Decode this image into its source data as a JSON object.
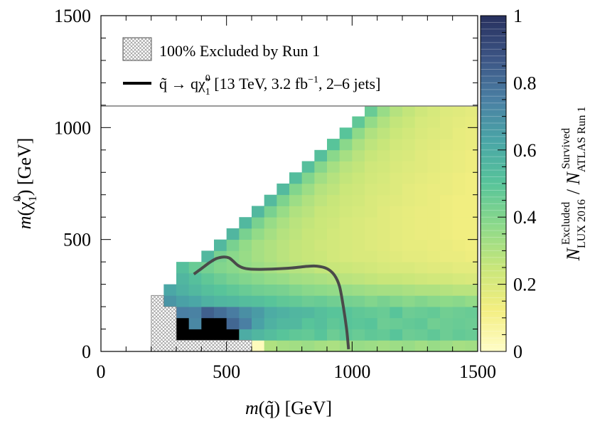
{
  "chart_data": {
    "type": "heatmap",
    "xlabel": "m(q̃) [GeV]",
    "ylabel": "m(χ̃₁⁰) [GeV]",
    "xlim": [
      0,
      1500
    ],
    "ylim": [
      0,
      1500
    ],
    "x_ticks": [
      "0",
      "500",
      "1000",
      "1500"
    ],
    "y_ticks": [
      "0",
      "500",
      "1000",
      "1500"
    ],
    "grid": false,
    "colorbar": {
      "label": "N^Excluded_LUX 2016 / N^Survived_ATLAS Run 1",
      "range": [
        0,
        1
      ],
      "ticks": [
        "0",
        "0.2",
        "0.4",
        "0.6",
        "0.8",
        "1"
      ],
      "colors": [
        "#fffdc8",
        "#f3ee80",
        "#c8e67a",
        "#8cd98a",
        "#58c49a",
        "#4aa6a6",
        "#4a7fa3",
        "#3c5484",
        "#27305e"
      ]
    },
    "grid_cell_gev": 50,
    "heatmap_rows": [
      {
        "y": 0,
        "x0": 600,
        "values": [
          0.02,
          0.3,
          0.32,
          0.33,
          0.34,
          0.32,
          0.31,
          0.33,
          0.35,
          0.34,
          0.33,
          0.34,
          0.35,
          0.33,
          0.35,
          0.34,
          0.32,
          0.33
        ]
      },
      {
        "y": 50,
        "x0": 300,
        "values": [
          1.0,
          1.0,
          1.0,
          1.0,
          1.0,
          0.6,
          0.56,
          0.53,
          0.5,
          0.48,
          0.47,
          0.5,
          0.45,
          0.48,
          0.46,
          0.48,
          0.47,
          0.5,
          0.45,
          0.46,
          0.48,
          0.45,
          0.47,
          0.46
        ]
      },
      {
        "y": 100,
        "x0": 300,
        "values": [
          1.0,
          0.72,
          1.0,
          1.0,
          0.82,
          0.75,
          0.64,
          0.58,
          0.55,
          0.55,
          0.5,
          0.52,
          0.48,
          0.5,
          0.49,
          0.5,
          0.45,
          0.46,
          0.47,
          0.48,
          0.44,
          0.45,
          0.46,
          0.45
        ]
      },
      {
        "y": 150,
        "x0": 300,
        "values": [
          0.75,
          0.74,
          0.84,
          0.8,
          0.76,
          0.7,
          0.66,
          0.6,
          0.58,
          0.56,
          0.55,
          0.52,
          0.5,
          0.5,
          0.48,
          0.47,
          0.46,
          0.5,
          0.45,
          0.46,
          0.47,
          0.44,
          0.45,
          0.46
        ]
      },
      {
        "y": 200,
        "x0": 250,
        "values": [
          0.68,
          0.64,
          0.62,
          0.58,
          0.56,
          0.55,
          0.53,
          0.52,
          0.5,
          0.48,
          0.47,
          0.45,
          0.46,
          0.44,
          0.43,
          0.42,
          0.4,
          0.42,
          0.4,
          0.38,
          0.4,
          0.38,
          0.37,
          0.38,
          0.36
        ]
      },
      {
        "y": 250,
        "x0": 250,
        "values": [
          0.62,
          0.58,
          0.55,
          0.52,
          0.5,
          0.48,
          0.46,
          0.44,
          0.43,
          0.42,
          0.4,
          0.38,
          0.37,
          0.36,
          0.35,
          0.34,
          0.33,
          0.32,
          0.32,
          0.31,
          0.3,
          0.3,
          0.29,
          0.28,
          0.28
        ]
      },
      {
        "y": 300,
        "x0": 300,
        "values": [
          0.56,
          0.52,
          0.48,
          0.45,
          0.42,
          0.4,
          0.38,
          0.36,
          0.35,
          0.33,
          0.32,
          0.31,
          0.3,
          0.28,
          0.27,
          0.26,
          0.25,
          0.25,
          0.24,
          0.23,
          0.22,
          0.22,
          0.21,
          0.2
        ]
      },
      {
        "y": 350,
        "x0": 300,
        "values": [
          0.52,
          0.46,
          0.43,
          0.4,
          0.38,
          0.36,
          0.34,
          0.32,
          0.3,
          0.29,
          0.28,
          0.26,
          0.25,
          0.24,
          0.23,
          0.22,
          0.21,
          0.2,
          0.2,
          0.19,
          0.18,
          0.18,
          0.17,
          0.17
        ]
      },
      {
        "y": 400,
        "x0": 400,
        "values": [
          0.55,
          0.42,
          0.38,
          0.35,
          0.32,
          0.3,
          0.28,
          0.26,
          0.25,
          0.24,
          0.22,
          0.21,
          0.2,
          0.2,
          0.19,
          0.18,
          0.17,
          0.17,
          0.16,
          0.15,
          0.15,
          0.14
        ]
      },
      {
        "y": 450,
        "x0": 450,
        "values": [
          0.55,
          0.42,
          0.36,
          0.32,
          0.3,
          0.28,
          0.26,
          0.25,
          0.23,
          0.22,
          0.21,
          0.2,
          0.19,
          0.18,
          0.17,
          0.16,
          0.16,
          0.15,
          0.15,
          0.14,
          0.13
        ]
      },
      {
        "y": 500,
        "x0": 500,
        "values": [
          0.56,
          0.42,
          0.36,
          0.32,
          0.29,
          0.27,
          0.25,
          0.24,
          0.22,
          0.21,
          0.2,
          0.19,
          0.18,
          0.17,
          0.16,
          0.15,
          0.15,
          0.14,
          0.13,
          0.13
        ]
      },
      {
        "y": 550,
        "x0": 550,
        "values": [
          0.55,
          0.42,
          0.35,
          0.31,
          0.28,
          0.26,
          0.24,
          0.23,
          0.21,
          0.2,
          0.19,
          0.18,
          0.17,
          0.16,
          0.15,
          0.15,
          0.14,
          0.13,
          0.13
        ]
      },
      {
        "y": 600,
        "x0": 600,
        "values": [
          0.55,
          0.42,
          0.35,
          0.3,
          0.28,
          0.25,
          0.24,
          0.22,
          0.21,
          0.2,
          0.18,
          0.17,
          0.16,
          0.15,
          0.15,
          0.14,
          0.13,
          0.13
        ]
      },
      {
        "y": 650,
        "x0": 650,
        "values": [
          0.54,
          0.41,
          0.34,
          0.3,
          0.27,
          0.25,
          0.23,
          0.22,
          0.2,
          0.19,
          0.18,
          0.17,
          0.16,
          0.15,
          0.14,
          0.13,
          0.13
        ]
      },
      {
        "y": 700,
        "x0": 700,
        "values": [
          0.54,
          0.4,
          0.34,
          0.29,
          0.27,
          0.24,
          0.23,
          0.21,
          0.2,
          0.19,
          0.17,
          0.16,
          0.15,
          0.15,
          0.14,
          0.13
        ]
      },
      {
        "y": 750,
        "x0": 750,
        "values": [
          0.53,
          0.4,
          0.33,
          0.29,
          0.26,
          0.24,
          0.22,
          0.21,
          0.19,
          0.18,
          0.17,
          0.16,
          0.15,
          0.14,
          0.13
        ]
      },
      {
        "y": 800,
        "x0": 800,
        "values": [
          0.52,
          0.39,
          0.32,
          0.28,
          0.26,
          0.23,
          0.22,
          0.2,
          0.19,
          0.18,
          0.17,
          0.16,
          0.15,
          0.14
        ]
      },
      {
        "y": 850,
        "x0": 850,
        "values": [
          0.52,
          0.38,
          0.32,
          0.28,
          0.25,
          0.23,
          0.21,
          0.2,
          0.18,
          0.17,
          0.16,
          0.15,
          0.14
        ]
      },
      {
        "y": 900,
        "x0": 900,
        "values": [
          0.5,
          0.38,
          0.31,
          0.27,
          0.25,
          0.22,
          0.21,
          0.19,
          0.18,
          0.17,
          0.16,
          0.15
        ]
      },
      {
        "y": 950,
        "x0": 950,
        "values": [
          0.5,
          0.37,
          0.3,
          0.27,
          0.24,
          0.22,
          0.2,
          0.19,
          0.18,
          0.16,
          0.15
        ]
      },
      {
        "y": 1000,
        "x0": 1000,
        "values": [
          0.48,
          0.36,
          0.3,
          0.26,
          0.24,
          0.21,
          0.2,
          0.18,
          0.17,
          0.16
        ]
      },
      {
        "y": 1050,
        "x0": 1050,
        "values": [
          0.46,
          0.35,
          0.29,
          0.26,
          0.23,
          0.21,
          0.19,
          0.18,
          0.17
        ]
      }
    ],
    "excluded_region": {
      "label": "100% Excluded by Run 1",
      "polygon": [
        [
          200,
          0
        ],
        [
          600,
          0
        ],
        [
          600,
          50
        ],
        [
          300,
          50
        ],
        [
          300,
          200
        ],
        [
          250,
          200
        ],
        [
          250,
          250
        ],
        [
          200,
          250
        ]
      ]
    },
    "contour": {
      "label": "q̃ → qχ̃₁⁰ [13 TeV, 3.2 fb⁻¹, 2–6 jets]",
      "color": "#4a4a4a",
      "points": [
        [
          370,
          345
        ],
        [
          400,
          370
        ],
        [
          430,
          395
        ],
        [
          460,
          415
        ],
        [
          490,
          422
        ],
        [
          510,
          418
        ],
        [
          525,
          405
        ],
        [
          545,
          385
        ],
        [
          570,
          372
        ],
        [
          610,
          367
        ],
        [
          680,
          368
        ],
        [
          760,
          373
        ],
        [
          820,
          380
        ],
        [
          860,
          381
        ],
        [
          900,
          370
        ],
        [
          930,
          340
        ],
        [
          950,
          290
        ],
        [
          965,
          200
        ],
        [
          978,
          100
        ],
        [
          986,
          10
        ]
      ]
    },
    "legend_entries": [
      "100% Excluded by Run 1",
      "q̃ → qχ̃₁⁰ [13 TeV, 3.2 fb⁻¹, 2–6 jets]"
    ]
  },
  "labels": {
    "xlabel_main": "m",
    "xlabel_rest": "(q̃) [GeV]",
    "ylabel_main": "m",
    "ylabel_rest_a": "(χ̃",
    "ylabel_sub": "1",
    "ylabel_sup": "0",
    "ylabel_rest_b": ") [GeV]",
    "cb_N": "N",
    "cb_sub1": "LUX 2016",
    "cb_sup1": "Excluded",
    "cb_slash": " / ",
    "cb_sub2": "ATLAS Run 1",
    "cb_sup2": "Survived",
    "legend1": "100% Excluded by Run 1",
    "legend2_a": "q̃ → qχ̃",
    "legend2_sub": "1",
    "legend2_sup": "0",
    "legend2_b": " [13 TeV, 3.2 fb",
    "legend2_sup2": "−1",
    "legend2_c": ", 2–6 jets]"
  }
}
